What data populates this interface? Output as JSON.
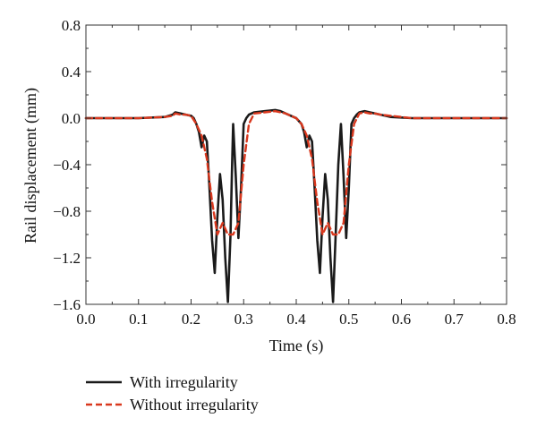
{
  "chart_data": {
    "type": "line",
    "title": "",
    "xlabel": "Time (s)",
    "ylabel": "Rail displacement (mm)",
    "xlim": [
      0.0,
      0.8
    ],
    "ylim": [
      -1.6,
      0.8
    ],
    "xticks": [
      "0.0",
      "0.1",
      "0.2",
      "0.3",
      "0.4",
      "0.5",
      "0.6",
      "0.7",
      "0.8"
    ],
    "yticks": [
      "0.8",
      "0.4",
      "0.0",
      "-0.4",
      "-0.8",
      "-1.2",
      "-1.6"
    ],
    "grid": false,
    "legend_position": "bottom-left-outside",
    "series": [
      {
        "name": "With irregularity",
        "color": "#1a1a1a",
        "style": "solid",
        "x": [
          0.0,
          0.1,
          0.15,
          0.165,
          0.17,
          0.18,
          0.19,
          0.2,
          0.205,
          0.21,
          0.215,
          0.22,
          0.225,
          0.23,
          0.235,
          0.24,
          0.245,
          0.25,
          0.255,
          0.26,
          0.265,
          0.27,
          0.275,
          0.278,
          0.28,
          0.285,
          0.29,
          0.295,
          0.3,
          0.305,
          0.31,
          0.32,
          0.34,
          0.36,
          0.37,
          0.38,
          0.39,
          0.4,
          0.41,
          0.415,
          0.42,
          0.425,
          0.43,
          0.435,
          0.44,
          0.445,
          0.45,
          0.455,
          0.46,
          0.465,
          0.47,
          0.475,
          0.48,
          0.485,
          0.49,
          0.495,
          0.5,
          0.505,
          0.51,
          0.515,
          0.52,
          0.53,
          0.54,
          0.55,
          0.56,
          0.57,
          0.58,
          0.6,
          0.62,
          0.65,
          0.7,
          0.75,
          0.8
        ],
        "y": [
          0.0,
          0.0,
          0.01,
          0.03,
          0.05,
          0.04,
          0.03,
          0.02,
          0.0,
          -0.05,
          -0.12,
          -0.25,
          -0.15,
          -0.2,
          -0.6,
          -1.05,
          -1.33,
          -0.85,
          -0.48,
          -0.7,
          -1.2,
          -1.58,
          -1.0,
          -0.4,
          -0.05,
          -0.5,
          -1.03,
          -0.6,
          -0.05,
          0.0,
          0.03,
          0.05,
          0.06,
          0.07,
          0.06,
          0.04,
          0.02,
          0.0,
          -0.05,
          -0.12,
          -0.25,
          -0.15,
          -0.2,
          -0.6,
          -1.05,
          -1.33,
          -0.85,
          -0.48,
          -0.7,
          -1.2,
          -1.58,
          -1.0,
          -0.4,
          -0.05,
          -0.5,
          -1.03,
          -0.6,
          -0.05,
          0.0,
          0.03,
          0.05,
          0.06,
          0.05,
          0.04,
          0.03,
          0.02,
          0.01,
          0.005,
          0.0,
          0.0,
          0.0,
          0.0,
          0.0
        ]
      },
      {
        "name": "Without irregularity",
        "color": "#d9381e",
        "style": "dashed",
        "x": [
          0.0,
          0.1,
          0.15,
          0.165,
          0.17,
          0.18,
          0.19,
          0.2,
          0.21,
          0.22,
          0.23,
          0.24,
          0.25,
          0.26,
          0.27,
          0.28,
          0.29,
          0.3,
          0.31,
          0.32,
          0.34,
          0.36,
          0.37,
          0.38,
          0.39,
          0.4,
          0.41,
          0.42,
          0.43,
          0.44,
          0.45,
          0.46,
          0.47,
          0.48,
          0.49,
          0.5,
          0.51,
          0.52,
          0.53,
          0.54,
          0.55,
          0.56,
          0.58,
          0.6,
          0.62,
          0.65,
          0.7,
          0.75,
          0.8
        ],
        "y": [
          0.0,
          0.0,
          0.01,
          0.02,
          0.04,
          0.03,
          0.03,
          0.02,
          -0.05,
          -0.15,
          -0.35,
          -0.72,
          -1.0,
          -0.9,
          -1.0,
          -1.0,
          -0.9,
          -0.4,
          -0.05,
          0.04,
          0.05,
          0.06,
          0.05,
          0.04,
          0.02,
          0.0,
          -0.05,
          -0.15,
          -0.35,
          -0.72,
          -1.0,
          -0.9,
          -1.0,
          -1.0,
          -0.9,
          -0.4,
          -0.05,
          0.04,
          0.05,
          0.04,
          0.04,
          0.03,
          0.02,
          0.01,
          0.0,
          0.0,
          0.0,
          0.0,
          0.0
        ]
      }
    ]
  }
}
